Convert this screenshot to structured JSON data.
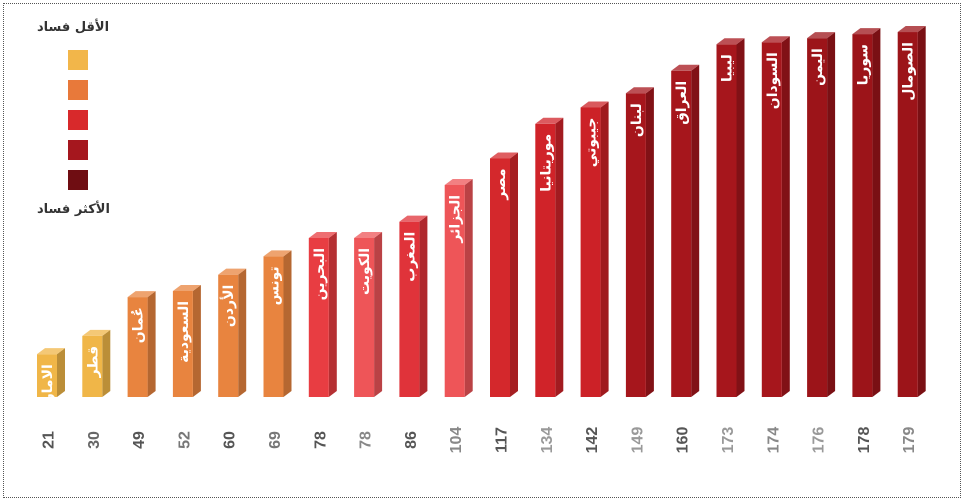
{
  "legend": {
    "top_label": "الأقل فساد",
    "bottom_label": "الأكثر فساد",
    "colors": [
      "#f2b64a",
      "#e8793a",
      "#d8292b",
      "#a5171e",
      "#6f0d12"
    ]
  },
  "chart_data": {
    "type": "bar",
    "categories": [
      "الامارات",
      "قطر",
      "عُمان",
      "السعودية",
      "الأردن",
      "تونس",
      "البحرين",
      "الكويت",
      "المغرب",
      "الجزائر",
      "مصر",
      "موريتانيا",
      "جيبوتي",
      "لبنان",
      "العراق",
      "ليبيا",
      "السودان",
      "اليمن",
      "سوريا",
      "الصومال"
    ],
    "values": [
      21,
      30,
      49,
      52,
      60,
      69,
      78,
      78,
      86,
      104,
      117,
      134,
      142,
      149,
      160,
      173,
      174,
      176,
      178,
      179
    ],
    "value_label_colors": [
      "#555",
      "#666",
      "#555",
      "#777",
      "#555",
      "#777",
      "#555",
      "#888",
      "#555",
      "#888",
      "#555",
      "#999",
      "#555",
      "#999",
      "#555",
      "#999",
      "#888",
      "#999",
      "#555",
      "#888"
    ],
    "bar_colors": [
      "#f0b648",
      "#f0b648",
      "#e8843f",
      "#e8843f",
      "#e8843f",
      "#e8843f",
      "#e83d42",
      "#ee5558",
      "#e0333a",
      "#ee5558",
      "#d4282c",
      "#d02329",
      "#cc2127",
      "#a6161c",
      "#a6161c",
      "#a6161c",
      "#a6161c",
      "#9c1419",
      "#9c1419",
      "#9c1419"
    ],
    "ylim": [
      0,
      180
    ]
  }
}
